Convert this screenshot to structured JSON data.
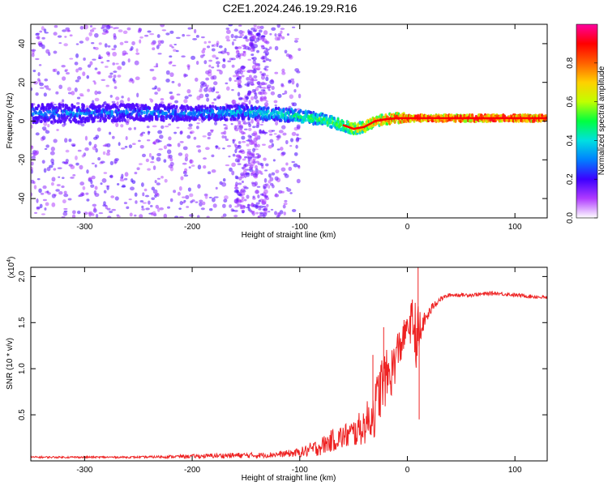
{
  "title": "C2E1.2024.246.19.29.R16",
  "chart_data": [
    {
      "type": "heatmap",
      "name": "spectrogram",
      "xlabel": "Height of straight line (km)",
      "ylabel": "Frequency (Hz)",
      "xlim": [
        -350,
        130
      ],
      "ylim": [
        -50,
        50
      ],
      "xticks": [
        -300,
        -200,
        -100,
        0,
        100
      ],
      "xtick_labels": [
        "-300",
        "-200",
        "-100",
        "0",
        "100"
      ],
      "yticks": [
        -40,
        -20,
        0,
        20,
        40
      ],
      "ytick_labels": [
        "-40",
        "-20",
        "0",
        "20",
        "40"
      ],
      "colorbar": {
        "label": "Normalized spectral amplitude",
        "range": [
          0,
          1
        ],
        "ticks": [
          0.0,
          0.2,
          0.4,
          0.6,
          0.8
        ],
        "tick_labels": [
          "0.0",
          "0.2",
          "0.4",
          "0.6",
          "0.8"
        ],
        "colors": [
          "#ffffff",
          "#b03cff",
          "#3c00ff",
          "#0080ff",
          "#00e0e0",
          "#00ff40",
          "#c0ff00",
          "#ffd000",
          "#ff6000",
          "#ff0000",
          "#ff00a0"
        ]
      },
      "center_track": {
        "x": [
          -350,
          -300,
          -250,
          -200,
          -150,
          -120,
          -100,
          -80,
          -60,
          -50,
          -40,
          -30,
          -20,
          -10,
          0,
          20,
          60,
          90,
          130
        ],
        "freq": [
          4,
          4,
          4.5,
          4,
          4.5,
          3.5,
          2.5,
          1,
          -2,
          -4,
          -3,
          0,
          1,
          1.5,
          1.5,
          1.5,
          1.5,
          1.5,
          1.5
        ],
        "amplitude": [
          0.35,
          0.35,
          0.35,
          0.35,
          0.4,
          0.45,
          0.5,
          0.55,
          0.6,
          0.7,
          0.75,
          0.8,
          0.85,
          0.88,
          0.9,
          0.9,
          0.9,
          0.92,
          0.9
        ]
      }
    },
    {
      "type": "line",
      "name": "snr",
      "xlabel": "Height of straight line (km)",
      "ylabel": "SNR (10 * v/v)",
      "y_multiplier": "(x10",
      "y_multiplier_exp": "4",
      "xlim": [
        -350,
        130
      ],
      "ylim": [
        0,
        2.1
      ],
      "xticks": [
        -300,
        -200,
        -100,
        0,
        100
      ],
      "xtick_labels": [
        "-300",
        "-200",
        "-100",
        "0",
        "100"
      ],
      "yticks": [
        0.5,
        1.0,
        1.5,
        2.0
      ],
      "ytick_labels": [
        "0.5",
        "1.0",
        "1.5",
        "2.0"
      ],
      "color": "#ee2222",
      "series_envelope": {
        "x": [
          -350,
          -300,
          -250,
          -200,
          -160,
          -140,
          -120,
          -100,
          -90,
          -80,
          -70,
          -60,
          -50,
          -40,
          -30,
          -25,
          -20,
          -15,
          -10,
          -5,
          0,
          5,
          10,
          15,
          20,
          25,
          30,
          35,
          40,
          60,
          80,
          100,
          120,
          130
        ],
        "y": [
          0.04,
          0.04,
          0.04,
          0.05,
          0.06,
          0.06,
          0.07,
          0.09,
          0.12,
          0.16,
          0.22,
          0.26,
          0.3,
          0.38,
          0.55,
          0.8,
          0.9,
          0.95,
          1.15,
          1.3,
          1.45,
          1.5,
          1.3,
          1.5,
          1.6,
          1.7,
          1.75,
          1.78,
          1.8,
          1.8,
          1.82,
          1.8,
          1.78,
          1.77
        ],
        "noise": [
          0.01,
          0.01,
          0.01,
          0.02,
          0.03,
          0.03,
          0.03,
          0.05,
          0.08,
          0.1,
          0.12,
          0.14,
          0.16,
          0.2,
          0.3,
          0.35,
          0.3,
          0.28,
          0.25,
          0.22,
          0.1,
          0.3,
          0.4,
          0.1,
          0.06,
          0.05,
          0.03,
          0.02,
          0.02,
          0.02,
          0.02,
          0.02,
          0.02,
          0.02
        ]
      },
      "spikes": [
        {
          "x": 10,
          "y": 2.1
        },
        {
          "x": 11,
          "y": 0.45
        },
        {
          "x": -32,
          "y": 1.15
        },
        {
          "x": -22,
          "y": 1.45
        }
      ]
    }
  ]
}
